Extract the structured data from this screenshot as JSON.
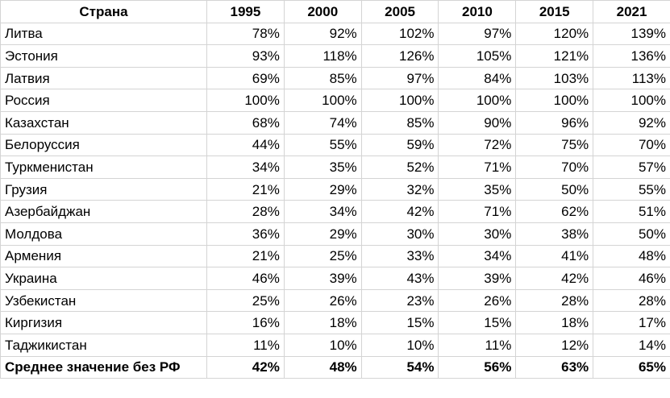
{
  "chart_data": {
    "type": "table",
    "header": {
      "country": "Страна",
      "years": [
        "1995",
        "2000",
        "2005",
        "2010",
        "2015",
        "2021"
      ]
    },
    "rows": [
      {
        "country": "Литва",
        "values": [
          "78%",
          "92%",
          "102%",
          "97%",
          "120%",
          "139%"
        ]
      },
      {
        "country": "Эстония",
        "values": [
          "93%",
          "118%",
          "126%",
          "105%",
          "121%",
          "136%"
        ]
      },
      {
        "country": "Латвия",
        "values": [
          "69%",
          "85%",
          "97%",
          "84%",
          "103%",
          "113%"
        ]
      },
      {
        "country": "Россия",
        "values": [
          "100%",
          "100%",
          "100%",
          "100%",
          "100%",
          "100%"
        ]
      },
      {
        "country": "Казахстан",
        "values": [
          "68%",
          "74%",
          "85%",
          "90%",
          "96%",
          "92%"
        ]
      },
      {
        "country": "Белоруссия",
        "values": [
          "44%",
          "55%",
          "59%",
          "72%",
          "75%",
          "70%"
        ]
      },
      {
        "country": "Туркменистан",
        "values": [
          "34%",
          "35%",
          "52%",
          "71%",
          "70%",
          "57%"
        ]
      },
      {
        "country": "Грузия",
        "values": [
          "21%",
          "29%",
          "32%",
          "35%",
          "50%",
          "55%"
        ]
      },
      {
        "country": "Азербайджан",
        "values": [
          "28%",
          "34%",
          "42%",
          "71%",
          "62%",
          "51%"
        ]
      },
      {
        "country": "Молдова",
        "values": [
          "36%",
          "29%",
          "30%",
          "30%",
          "38%",
          "50%"
        ]
      },
      {
        "country": "Армения",
        "values": [
          "21%",
          "25%",
          "33%",
          "34%",
          "41%",
          "48%"
        ]
      },
      {
        "country": "Украина",
        "values": [
          "46%",
          "39%",
          "43%",
          "39%",
          "42%",
          "46%"
        ]
      },
      {
        "country": "Узбекистан",
        "values": [
          "25%",
          "26%",
          "23%",
          "26%",
          "28%",
          "28%"
        ]
      },
      {
        "country": "Киргизия",
        "values": [
          "16%",
          "18%",
          "15%",
          "15%",
          "18%",
          "17%"
        ]
      },
      {
        "country": "Таджикистан",
        "values": [
          "11%",
          "10%",
          "10%",
          "11%",
          "12%",
          "14%"
        ]
      }
    ],
    "summary": {
      "label": "Среднее значение без РФ",
      "values": [
        "42%",
        "48%",
        "54%",
        "56%",
        "63%",
        "65%"
      ]
    },
    "grid": true
  }
}
